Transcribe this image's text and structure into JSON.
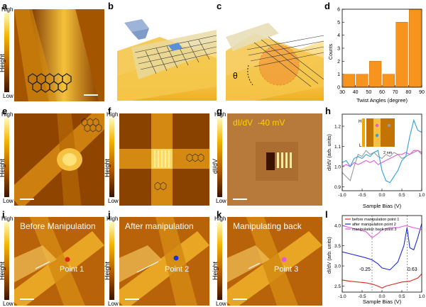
{
  "panels": {
    "a": "a",
    "b": "b",
    "c": "c",
    "d": "d",
    "e": "e",
    "f": "f",
    "g": "g",
    "h": "h",
    "i": "i",
    "j": "j",
    "k": "k",
    "l": "l"
  },
  "colorbar": {
    "high": "High",
    "low": "Low",
    "height": "Height",
    "didv": "dI/dV"
  },
  "panel_c": {
    "theta": "θ"
  },
  "panel_g": {
    "label": "dI/dV  -40 mV"
  },
  "panel_h": {
    "inset_high": "H",
    "inset_low": "L",
    "inset_scale": "2 nm"
  },
  "manipulation": {
    "before": "Before Manipulation",
    "after": "After manipulation",
    "back": "Manipulating back",
    "point1": "Point 1",
    "point2": "Point 2",
    "point3": "Point 3"
  },
  "colors": {
    "gold": "#f0a400",
    "orange_bar": "#f7941d",
    "red": "#e0251b",
    "blue": "#1f2fd6",
    "magenta": "#e35ad8",
    "gray": "#9a9a9a",
    "cyan": "#2fa0d8"
  },
  "chart_data": [
    {
      "id": "d",
      "type": "bar",
      "categories": [
        "30-40",
        "40-50",
        "50-60",
        "60-70",
        "70-80",
        "80-90"
      ],
      "values": [
        1,
        1,
        2,
        1,
        5,
        6
      ],
      "xlabel": "Twist Angles (degree)",
      "ylabel": "Counts",
      "xticks": [
        "30",
        "40",
        "50",
        "60",
        "70",
        "80",
        "90"
      ],
      "yticks": [
        "0",
        "1",
        "2",
        "3",
        "4",
        "5",
        "6"
      ],
      "ylim": [
        0,
        6
      ]
    },
    {
      "id": "h",
      "type": "line",
      "xlabel": "Sample Bias (V)",
      "ylabel": "dI/dV (arb. units)",
      "xticks": [
        "-1.0",
        "-0.5",
        "0.0",
        "0.5",
        "1.0"
      ],
      "yticks": [
        "0.9",
        "1.0",
        "1.1",
        "1.2"
      ],
      "xlim": [
        -1.0,
        1.0
      ],
      "ylim": [
        0.88,
        1.26
      ],
      "series": [
        {
          "name": "gray",
          "x": [
            -1.0,
            -0.9,
            -0.8,
            -0.7,
            -0.6,
            -0.5,
            -0.4,
            -0.3,
            -0.2,
            -0.1,
            0.0,
            0.1,
            0.2,
            0.3,
            0.4,
            0.5,
            0.6,
            0.7,
            0.8,
            0.9,
            1.0
          ],
          "y": [
            0.97,
            0.95,
            0.93,
            1.0,
            1.06,
            1.05,
            1.08,
            1.06,
            1.07,
            1.05,
            1.04,
            1.06,
            1.05,
            1.07,
            1.06,
            1.04,
            1.05,
            1.06,
            1.07,
            1.08,
            1.06
          ]
        },
        {
          "name": "magenta",
          "x": [
            -1.0,
            -0.9,
            -0.8,
            -0.7,
            -0.6,
            -0.5,
            -0.4,
            -0.3,
            -0.2,
            -0.1,
            0.0,
            0.1,
            0.2,
            0.3,
            0.4,
            0.5,
            0.6,
            0.7,
            0.8,
            0.9,
            1.0
          ],
          "y": [
            1.0,
            1.01,
            1.0,
            1.02,
            1.01,
            1.02,
            1.03,
            1.02,
            1.03,
            1.01,
            1.02,
            1.03,
            1.04,
            1.05,
            1.06,
            1.06,
            1.07,
            1.06,
            1.08,
            1.08,
            1.07
          ]
        },
        {
          "name": "cyan",
          "x": [
            -1.0,
            -0.9,
            -0.8,
            -0.7,
            -0.6,
            -0.5,
            -0.4,
            -0.3,
            -0.2,
            -0.1,
            0.0,
            0.1,
            0.2,
            0.3,
            0.4,
            0.5,
            0.6,
            0.7,
            0.8,
            0.9,
            1.0
          ],
          "y": [
            1.02,
            1.03,
            1.0,
            1.04,
            1.05,
            1.04,
            1.06,
            1.05,
            1.07,
            1.08,
            0.98,
            0.93,
            0.92,
            0.95,
            0.98,
            1.03,
            1.05,
            1.15,
            1.23,
            1.18,
            1.17
          ]
        }
      ]
    },
    {
      "id": "l",
      "type": "line",
      "xlabel": "Sample Bias (V)",
      "ylabel": "dI/dV (arb. units)",
      "xticks": [
        "-1.0",
        "-0.5",
        "0.0",
        "0.5",
        "1.0"
      ],
      "yticks": [
        "2.5",
        "3.0",
        "3.5",
        "4.0"
      ],
      "xlim": [
        -1.0,
        1.0
      ],
      "ylim": [
        2.35,
        4.25
      ],
      "legend": [
        "before manipulation point 1",
        "after manipulation point 2",
        "manipulation back point 3"
      ],
      "annotations": [
        "-0.25",
        "0.63"
      ],
      "vlines": [
        -0.25,
        0.63
      ],
      "series": [
        {
          "name": "before manipulation point 1",
          "x": [
            -1.0,
            -0.8,
            -0.6,
            -0.4,
            -0.25,
            -0.1,
            0.0,
            0.1,
            0.3,
            0.5,
            0.7,
            0.9,
            1.0
          ],
          "y": [
            2.65,
            2.62,
            2.6,
            2.58,
            2.55,
            2.5,
            2.45,
            2.5,
            2.55,
            2.6,
            2.62,
            2.7,
            2.8
          ]
        },
        {
          "name": "after manipulation point 2",
          "x": [
            -1.0,
            -0.8,
            -0.6,
            -0.4,
            -0.25,
            -0.1,
            0.0,
            0.2,
            0.4,
            0.55,
            0.63,
            0.7,
            0.8,
            0.9,
            1.0
          ],
          "y": [
            3.35,
            3.3,
            3.25,
            3.2,
            3.15,
            3.05,
            2.95,
            2.9,
            3.1,
            3.5,
            3.95,
            3.45,
            3.4,
            3.7,
            4.05
          ]
        },
        {
          "name": "manipulation back point 3",
          "x": [
            -1.0,
            -0.8,
            -0.6,
            -0.4,
            -0.25,
            -0.1,
            0.0,
            0.2,
            0.4,
            0.6,
            0.8,
            1.0
          ],
          "y": [
            4.0,
            3.95,
            3.9,
            3.85,
            3.7,
            3.8,
            3.9,
            3.95,
            3.95,
            4.0,
            3.95,
            3.9
          ]
        }
      ]
    }
  ]
}
